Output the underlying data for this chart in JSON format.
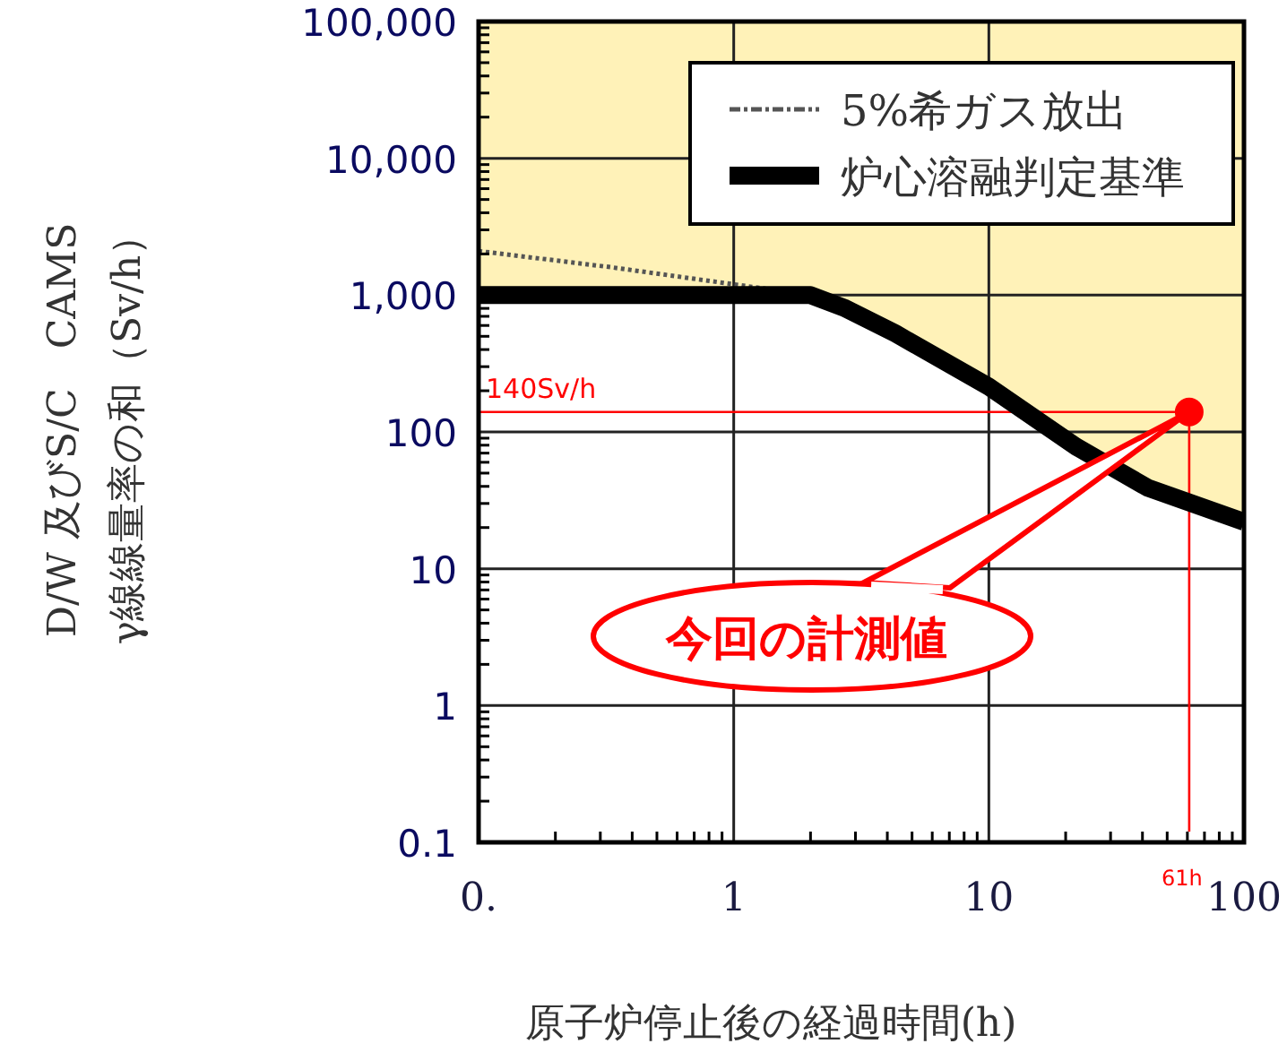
{
  "chart_data": {
    "type": "line",
    "xlabel": "原子炉停止後の経過時間(h)",
    "ylabel": "D/W 及びS/C　CAMS\nγ線線量率の和（Sv/h）",
    "log": "xy",
    "grid": true,
    "legend": "top right",
    "xlim": [
      0.1,
      100
    ],
    "ylim": [
      0.1,
      100000
    ],
    "xticks": [
      {
        "value": 0.1,
        "label": "0."
      },
      1,
      10,
      100
    ],
    "yticks": [
      0.1,
      1,
      10,
      100,
      {
        "value": 1000,
        "label": "1,000"
      },
      {
        "value": 10000,
        "label": "10,000"
      },
      {
        "value": 100000,
        "label": "100,000"
      }
    ],
    "series": [
      {
        "name": "5%希ガス放出",
        "color": "#555555",
        "line_style": "dotted",
        "x": [
          0.1,
          0.33,
          1,
          2
        ],
        "values": [
          2100,
          1600,
          1200,
          1000
        ]
      },
      {
        "name": "炉心溶融判定基準",
        "color": "#000000",
        "line_style": "solid",
        "x": [
          0.1,
          2,
          2.7,
          4.3,
          10,
          22,
          42,
          100
        ],
        "values": [
          1000,
          1000,
          810,
          525,
          214,
          78,
          39,
          22
        ],
        "lower": [
          1000,
          1000,
          810,
          525,
          214,
          78,
          39,
          22
        ],
        "upper": [
          100000,
          100000,
          100000,
          100000,
          100000,
          100000,
          100000,
          100000
        ]
      },
      {
        "type": "scatter",
        "color": "#ff0000",
        "marker": "circle",
        "x": [
          61
        ],
        "values": [
          140
        ]
      }
    ],
    "ref_lines": [
      {
        "axis": "y",
        "value": 140,
        "label": "140Sv/h",
        "color": "#ff0000"
      },
      {
        "axis": "x",
        "value": 61,
        "label": "61h",
        "color": "#ff0000"
      }
    ],
    "annotations": [
      "今回の計測値"
    ]
  }
}
